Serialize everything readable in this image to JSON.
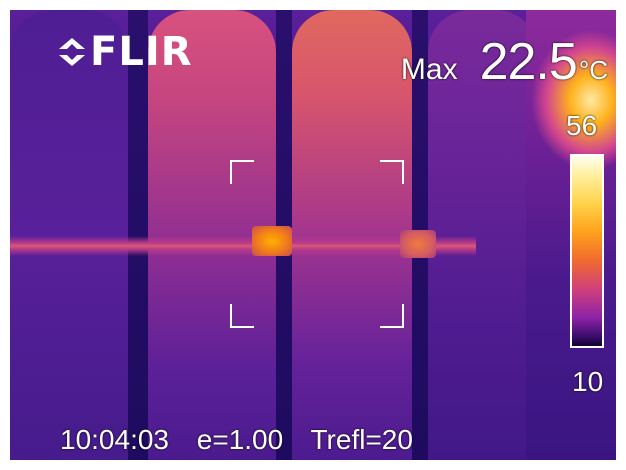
{
  "brand": {
    "name": "FLIR",
    "logo_icon": "flir-logo-icon"
  },
  "measurement": {
    "label": "Max",
    "value": "22.5",
    "unit": "°C"
  },
  "scale": {
    "max": "56",
    "min": "10",
    "palette": "iron"
  },
  "status": {
    "time": "10:04:03",
    "emissivity": "e=1.00",
    "reflected_temp": "Trefl=20"
  },
  "colors": {
    "overlay_text": "#ffffff",
    "hot": "#ffb21c",
    "cold": "#3a1582"
  }
}
